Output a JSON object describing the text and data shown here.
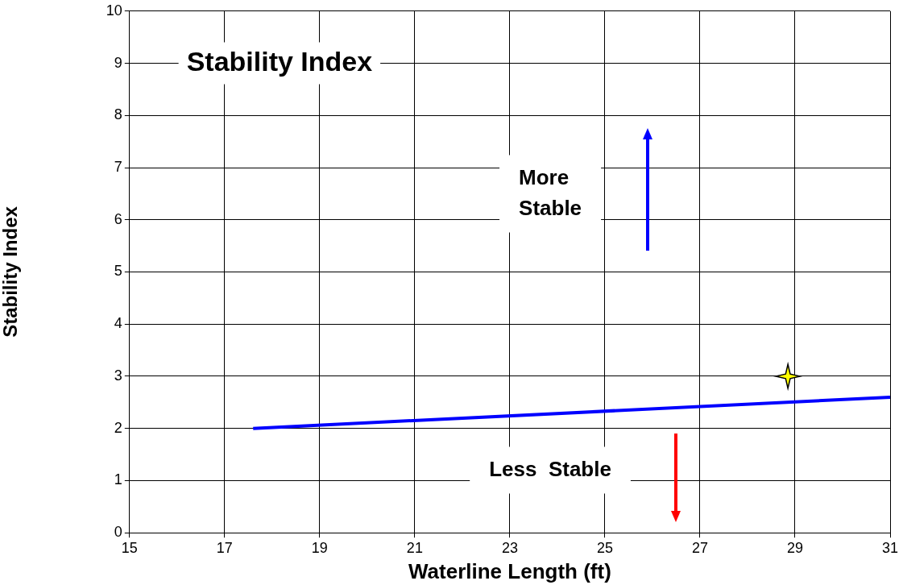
{
  "chart_data": {
    "type": "line",
    "title": "Stability Index",
    "xlabel": "Waterline Length (ft)",
    "ylabel": "Stability Index",
    "annotations": [
      "More\nStable",
      "Less  Stable"
    ],
    "series": [
      {
        "color": "#0000ff",
        "x": [
          17.6,
          31
        ],
        "values": [
          2.0,
          2.6
        ],
        "marker": "none"
      },
      {
        "type": "scatter",
        "color": "#ffff00",
        "x": [
          28.85
        ],
        "values": [
          3.0
        ],
        "marker": "star"
      }
    ],
    "xlim": [
      15,
      31
    ],
    "xticks": [
      15,
      17,
      19,
      21,
      23,
      25,
      27,
      29,
      31
    ],
    "ylim": [
      0,
      10
    ],
    "yticks": [
      0,
      1,
      2,
      3,
      4,
      5,
      6,
      7,
      8,
      9,
      10
    ],
    "grid": true,
    "legend": false
  }
}
